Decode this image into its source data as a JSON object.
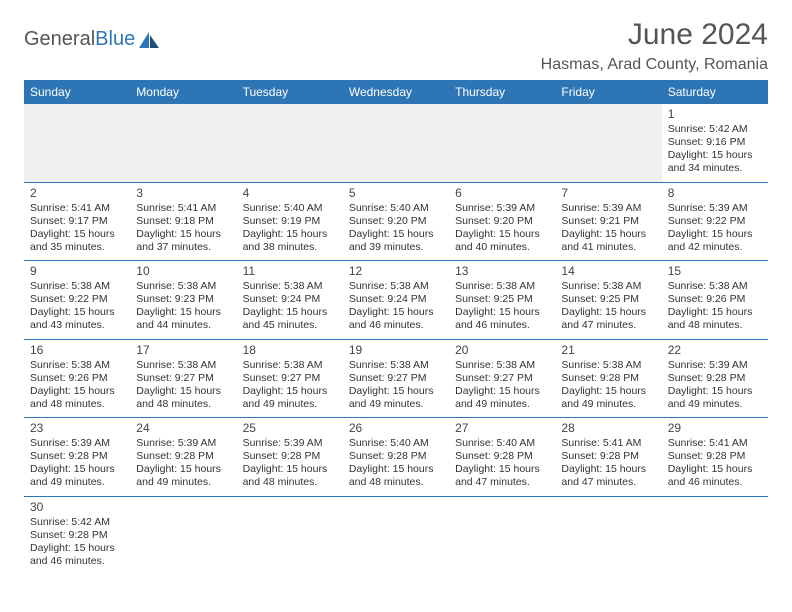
{
  "brand": {
    "part1": "General",
    "part2": "Blue"
  },
  "title": {
    "month": "June 2024",
    "location": "Hasmas, Arad County, Romania"
  },
  "weekdays": [
    "Sunday",
    "Monday",
    "Tuesday",
    "Wednesday",
    "Thursday",
    "Friday",
    "Saturday"
  ],
  "colors": {
    "accent": "#2e75b6",
    "text": "#333",
    "header_text": "#555"
  },
  "weeks": [
    [
      null,
      null,
      null,
      null,
      null,
      null,
      {
        "n": "1",
        "rise": "Sunrise: 5:42 AM",
        "set": "Sunset: 9:16 PM",
        "d1": "Daylight: 15 hours",
        "d2": "and 34 minutes."
      }
    ],
    [
      {
        "n": "2",
        "rise": "Sunrise: 5:41 AM",
        "set": "Sunset: 9:17 PM",
        "d1": "Daylight: 15 hours",
        "d2": "and 35 minutes."
      },
      {
        "n": "3",
        "rise": "Sunrise: 5:41 AM",
        "set": "Sunset: 9:18 PM",
        "d1": "Daylight: 15 hours",
        "d2": "and 37 minutes."
      },
      {
        "n": "4",
        "rise": "Sunrise: 5:40 AM",
        "set": "Sunset: 9:19 PM",
        "d1": "Daylight: 15 hours",
        "d2": "and 38 minutes."
      },
      {
        "n": "5",
        "rise": "Sunrise: 5:40 AM",
        "set": "Sunset: 9:20 PM",
        "d1": "Daylight: 15 hours",
        "d2": "and 39 minutes."
      },
      {
        "n": "6",
        "rise": "Sunrise: 5:39 AM",
        "set": "Sunset: 9:20 PM",
        "d1": "Daylight: 15 hours",
        "d2": "and 40 minutes."
      },
      {
        "n": "7",
        "rise": "Sunrise: 5:39 AM",
        "set": "Sunset: 9:21 PM",
        "d1": "Daylight: 15 hours",
        "d2": "and 41 minutes."
      },
      {
        "n": "8",
        "rise": "Sunrise: 5:39 AM",
        "set": "Sunset: 9:22 PM",
        "d1": "Daylight: 15 hours",
        "d2": "and 42 minutes."
      }
    ],
    [
      {
        "n": "9",
        "rise": "Sunrise: 5:38 AM",
        "set": "Sunset: 9:22 PM",
        "d1": "Daylight: 15 hours",
        "d2": "and 43 minutes."
      },
      {
        "n": "10",
        "rise": "Sunrise: 5:38 AM",
        "set": "Sunset: 9:23 PM",
        "d1": "Daylight: 15 hours",
        "d2": "and 44 minutes."
      },
      {
        "n": "11",
        "rise": "Sunrise: 5:38 AM",
        "set": "Sunset: 9:24 PM",
        "d1": "Daylight: 15 hours",
        "d2": "and 45 minutes."
      },
      {
        "n": "12",
        "rise": "Sunrise: 5:38 AM",
        "set": "Sunset: 9:24 PM",
        "d1": "Daylight: 15 hours",
        "d2": "and 46 minutes."
      },
      {
        "n": "13",
        "rise": "Sunrise: 5:38 AM",
        "set": "Sunset: 9:25 PM",
        "d1": "Daylight: 15 hours",
        "d2": "and 46 minutes."
      },
      {
        "n": "14",
        "rise": "Sunrise: 5:38 AM",
        "set": "Sunset: 9:25 PM",
        "d1": "Daylight: 15 hours",
        "d2": "and 47 minutes."
      },
      {
        "n": "15",
        "rise": "Sunrise: 5:38 AM",
        "set": "Sunset: 9:26 PM",
        "d1": "Daylight: 15 hours",
        "d2": "and 48 minutes."
      }
    ],
    [
      {
        "n": "16",
        "rise": "Sunrise: 5:38 AM",
        "set": "Sunset: 9:26 PM",
        "d1": "Daylight: 15 hours",
        "d2": "and 48 minutes."
      },
      {
        "n": "17",
        "rise": "Sunrise: 5:38 AM",
        "set": "Sunset: 9:27 PM",
        "d1": "Daylight: 15 hours",
        "d2": "and 48 minutes."
      },
      {
        "n": "18",
        "rise": "Sunrise: 5:38 AM",
        "set": "Sunset: 9:27 PM",
        "d1": "Daylight: 15 hours",
        "d2": "and 49 minutes."
      },
      {
        "n": "19",
        "rise": "Sunrise: 5:38 AM",
        "set": "Sunset: 9:27 PM",
        "d1": "Daylight: 15 hours",
        "d2": "and 49 minutes."
      },
      {
        "n": "20",
        "rise": "Sunrise: 5:38 AM",
        "set": "Sunset: 9:27 PM",
        "d1": "Daylight: 15 hours",
        "d2": "and 49 minutes."
      },
      {
        "n": "21",
        "rise": "Sunrise: 5:38 AM",
        "set": "Sunset: 9:28 PM",
        "d1": "Daylight: 15 hours",
        "d2": "and 49 minutes."
      },
      {
        "n": "22",
        "rise": "Sunrise: 5:39 AM",
        "set": "Sunset: 9:28 PM",
        "d1": "Daylight: 15 hours",
        "d2": "and 49 minutes."
      }
    ],
    [
      {
        "n": "23",
        "rise": "Sunrise: 5:39 AM",
        "set": "Sunset: 9:28 PM",
        "d1": "Daylight: 15 hours",
        "d2": "and 49 minutes."
      },
      {
        "n": "24",
        "rise": "Sunrise: 5:39 AM",
        "set": "Sunset: 9:28 PM",
        "d1": "Daylight: 15 hours",
        "d2": "and 49 minutes."
      },
      {
        "n": "25",
        "rise": "Sunrise: 5:39 AM",
        "set": "Sunset: 9:28 PM",
        "d1": "Daylight: 15 hours",
        "d2": "and 48 minutes."
      },
      {
        "n": "26",
        "rise": "Sunrise: 5:40 AM",
        "set": "Sunset: 9:28 PM",
        "d1": "Daylight: 15 hours",
        "d2": "and 48 minutes."
      },
      {
        "n": "27",
        "rise": "Sunrise: 5:40 AM",
        "set": "Sunset: 9:28 PM",
        "d1": "Daylight: 15 hours",
        "d2": "and 47 minutes."
      },
      {
        "n": "28",
        "rise": "Sunrise: 5:41 AM",
        "set": "Sunset: 9:28 PM",
        "d1": "Daylight: 15 hours",
        "d2": "and 47 minutes."
      },
      {
        "n": "29",
        "rise": "Sunrise: 5:41 AM",
        "set": "Sunset: 9:28 PM",
        "d1": "Daylight: 15 hours",
        "d2": "and 46 minutes."
      }
    ],
    [
      {
        "n": "30",
        "rise": "Sunrise: 5:42 AM",
        "set": "Sunset: 9:28 PM",
        "d1": "Daylight: 15 hours",
        "d2": "and 46 minutes."
      },
      null,
      null,
      null,
      null,
      null,
      null
    ]
  ]
}
